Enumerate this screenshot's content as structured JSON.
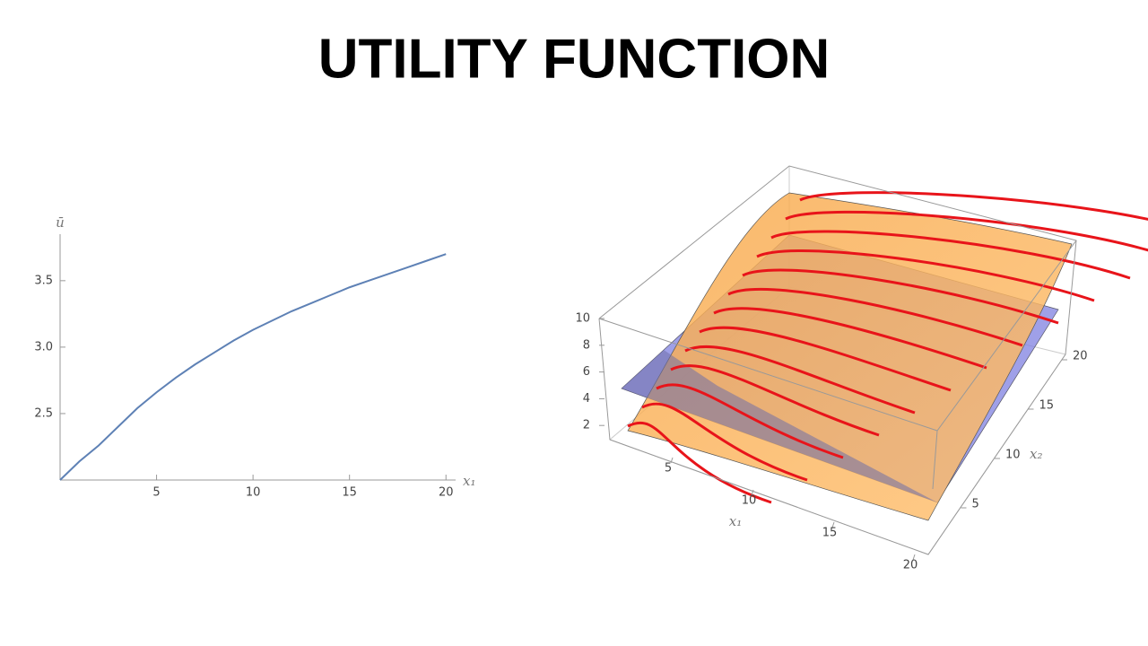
{
  "title": "UTILITY FUNCTION",
  "chart_data": [
    {
      "type": "line",
      "x": [
        0,
        1,
        2,
        3,
        4,
        5,
        6,
        7,
        8,
        9,
        10,
        11,
        12,
        13,
        14,
        15,
        16,
        17,
        18,
        19,
        20
      ],
      "values": [
        2.0,
        2.14,
        2.26,
        2.4,
        2.54,
        2.66,
        2.77,
        2.87,
        2.96,
        3.05,
        3.13,
        3.2,
        3.27,
        3.33,
        3.39,
        3.45,
        3.5,
        3.55,
        3.6,
        3.65,
        3.7
      ],
      "color": "#5e81b5",
      "xlabel": "x₁",
      "ylabel": "ū",
      "xlim": [
        0,
        20.5
      ],
      "ylim": [
        2,
        3.85
      ],
      "xticks": [
        5,
        10,
        15,
        20
      ],
      "yticks": [
        2.5,
        {
          "value": 3,
          "label": "3.0"
        },
        3.5
      ]
    },
    {
      "type": "surface3d",
      "xlabel": "x₁",
      "ylabel": "x₂",
      "xlim": [
        0,
        20
      ],
      "ylim": [
        0,
        20
      ],
      "zlim": [
        0,
        10
      ],
      "xticks": [
        5,
        10,
        15,
        20
      ],
      "yticks": [
        5,
        10,
        15,
        20
      ],
      "zticks": [
        2,
        4,
        6,
        8,
        10
      ]
    }
  ]
}
